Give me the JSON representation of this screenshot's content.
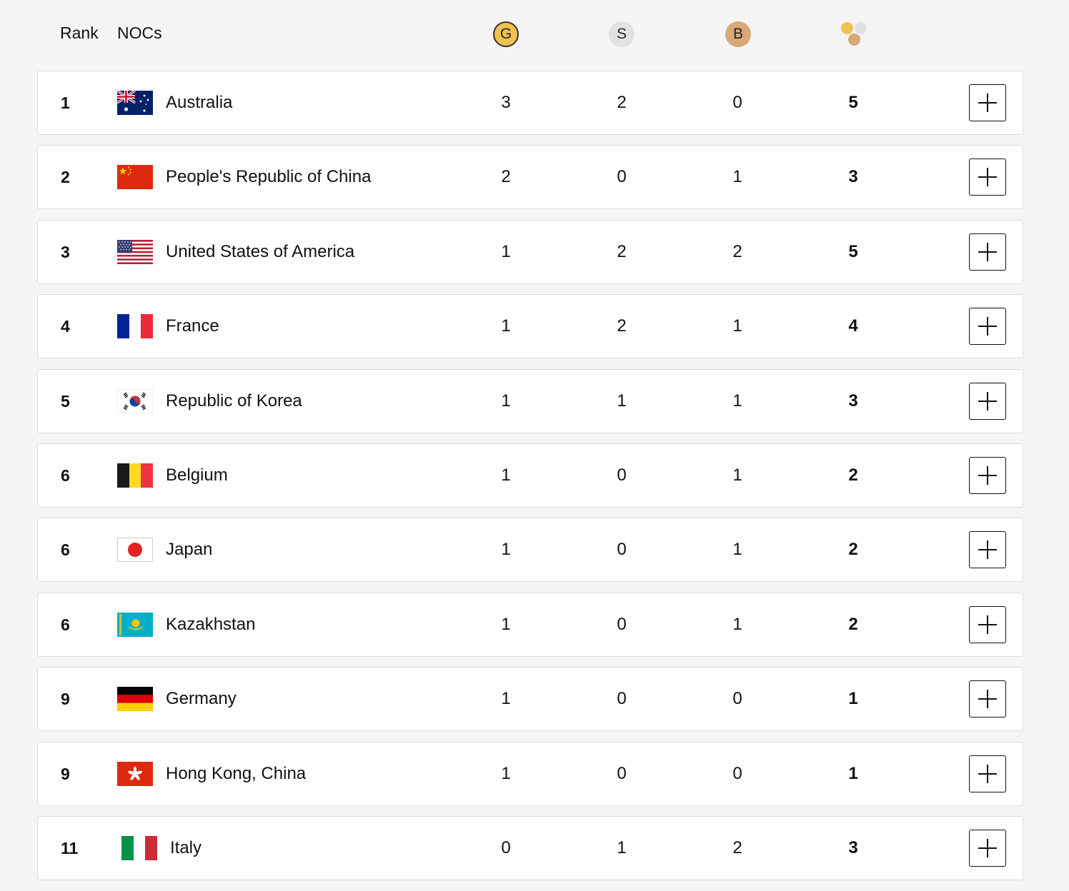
{
  "header": {
    "rank_label": "Rank",
    "nocs_label": "NOCs",
    "gold_label": "G",
    "silver_label": "S",
    "bronze_label": "B",
    "total_icon": "medals-total-icon"
  },
  "colors": {
    "gold": "#f3c14f",
    "silver": "#e2e2e2",
    "bronze": "#d8a878"
  },
  "rows": [
    {
      "rank": "1",
      "noc": "Australia",
      "flag": "australia",
      "gold": "3",
      "silver": "2",
      "bronze": "0",
      "total": "5"
    },
    {
      "rank": "2",
      "noc": "People's Republic of China",
      "flag": "china",
      "gold": "2",
      "silver": "0",
      "bronze": "1",
      "total": "3"
    },
    {
      "rank": "3",
      "noc": "United States of America",
      "flag": "usa",
      "gold": "1",
      "silver": "2",
      "bronze": "2",
      "total": "5"
    },
    {
      "rank": "4",
      "noc": "France",
      "flag": "france",
      "gold": "1",
      "silver": "2",
      "bronze": "1",
      "total": "4"
    },
    {
      "rank": "5",
      "noc": "Republic of Korea",
      "flag": "korea",
      "gold": "1",
      "silver": "1",
      "bronze": "1",
      "total": "3"
    },
    {
      "rank": "6",
      "noc": "Belgium",
      "flag": "belgium",
      "gold": "1",
      "silver": "0",
      "bronze": "1",
      "total": "2"
    },
    {
      "rank": "6",
      "noc": "Japan",
      "flag": "japan",
      "gold": "1",
      "silver": "0",
      "bronze": "1",
      "total": "2"
    },
    {
      "rank": "6",
      "noc": "Kazakhstan",
      "flag": "kazakhstan",
      "gold": "1",
      "silver": "0",
      "bronze": "1",
      "total": "2"
    },
    {
      "rank": "9",
      "noc": "Germany",
      "flag": "germany",
      "gold": "1",
      "silver": "0",
      "bronze": "0",
      "total": "1"
    },
    {
      "rank": "9",
      "noc": "Hong Kong, China",
      "flag": "hongkong",
      "gold": "1",
      "silver": "0",
      "bronze": "0",
      "total": "1"
    },
    {
      "rank": "11",
      "noc": "Italy",
      "flag": "italy",
      "gold": "0",
      "silver": "1",
      "bronze": "2",
      "total": "3"
    }
  ]
}
